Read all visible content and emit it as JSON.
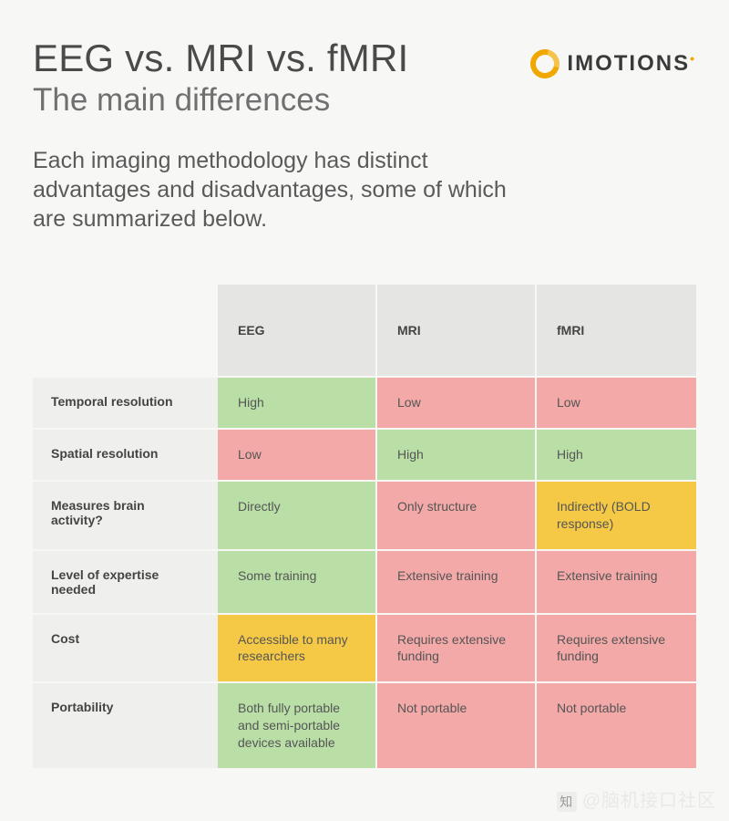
{
  "header": {
    "title": "EEG vs. MRI vs. fMRI",
    "subtitle": "The main differences",
    "logo_text": "IMOTIONS",
    "intro": "Each imaging methodology has distinct advantages and disadvantages, some of which are summarized below."
  },
  "colors": {
    "good": "#b9dfa7",
    "warn": "#f5c945",
    "bad": "#f2a9a8",
    "header_bg": "#e5e5e3",
    "rowlabel_bg": "#efefed",
    "page_bg": "#f7f7f5",
    "title_color": "#4a4a4a",
    "text_color": "#555555"
  },
  "table": {
    "columns": [
      "EEG",
      "MRI",
      "fMRI"
    ],
    "rows": [
      {
        "label": "Temporal resolution",
        "cells": [
          {
            "text": "High",
            "tone": "good"
          },
          {
            "text": "Low",
            "tone": "bad"
          },
          {
            "text": "Low",
            "tone": "bad"
          }
        ]
      },
      {
        "label": "Spatial resolution",
        "cells": [
          {
            "text": "Low",
            "tone": "bad"
          },
          {
            "text": "High",
            "tone": "good"
          },
          {
            "text": "High",
            "tone": "good"
          }
        ]
      },
      {
        "label": "Measures brain activity?",
        "cells": [
          {
            "text": "Directly",
            "tone": "good"
          },
          {
            "text": "Only structure",
            "tone": "bad"
          },
          {
            "text": "Indirectly (BOLD response)",
            "tone": "warn"
          }
        ]
      },
      {
        "label": "Level of expertise needed",
        "cells": [
          {
            "text": "Some training",
            "tone": "good"
          },
          {
            "text": "Extensive training",
            "tone": "bad"
          },
          {
            "text": "Extensive training",
            "tone": "bad"
          }
        ]
      },
      {
        "label": "Cost",
        "cells": [
          {
            "text": "Accessible to many researchers",
            "tone": "warn"
          },
          {
            "text": "Requires extensive funding",
            "tone": "bad"
          },
          {
            "text": "Requires extensive funding",
            "tone": "bad"
          }
        ]
      },
      {
        "label": "Portability",
        "cells": [
          {
            "text": "Both fully portable and semi-portable devices available",
            "tone": "good"
          },
          {
            "text": "Not portable",
            "tone": "bad"
          },
          {
            "text": "Not portable",
            "tone": "bad"
          }
        ]
      }
    ]
  },
  "watermark": "@脑机接口社区"
}
